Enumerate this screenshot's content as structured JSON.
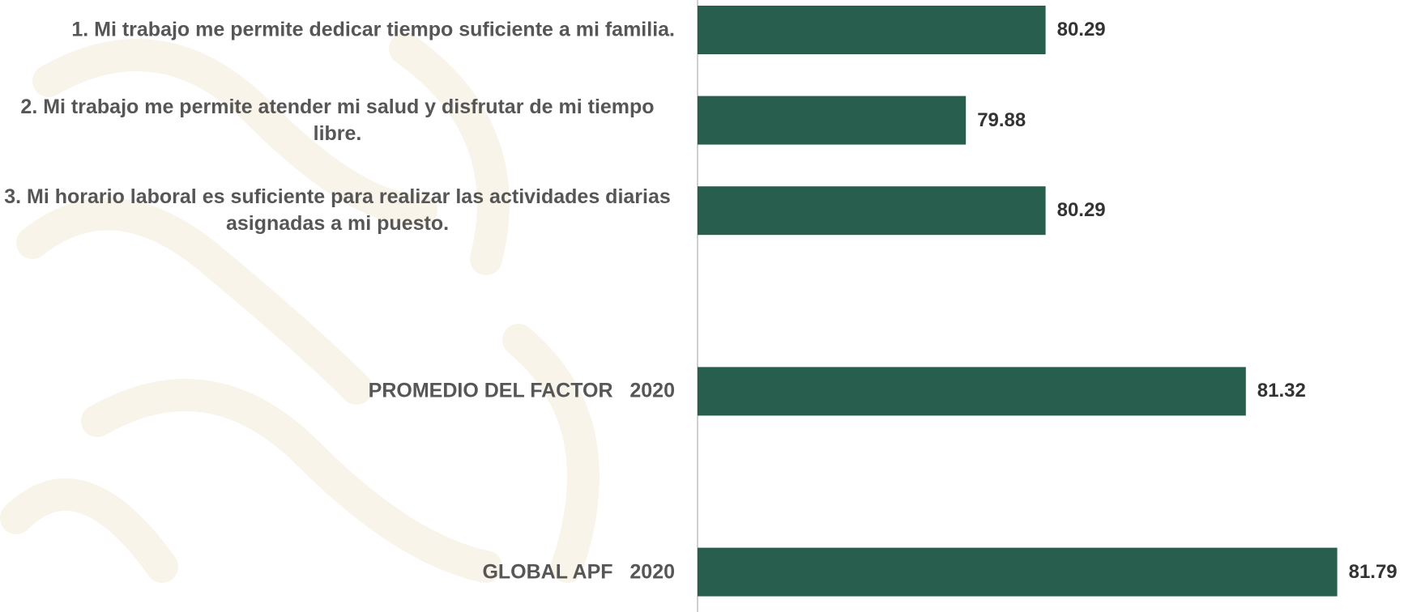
{
  "chart_data": {
    "type": "hbar",
    "categories": [
      "1. Mi trabajo me permite dedicar tiempo suficiente a mi familia.",
      "2. Mi trabajo me permite atender mi salud y disfrutar de mi tiempo libre.",
      "3. Mi horario laboral es suficiente para realizar las actividades diarias asignadas a mi puesto.",
      null,
      "PROMEDIO DEL FACTOR   2020",
      null,
      "GLOBAL APF   2020"
    ],
    "values": [
      80.29,
      79.88,
      80.29,
      null,
      81.32,
      null,
      81.79
    ],
    "color": "#285e4d",
    "xlim": [
      78.5,
      82.1
    ]
  }
}
